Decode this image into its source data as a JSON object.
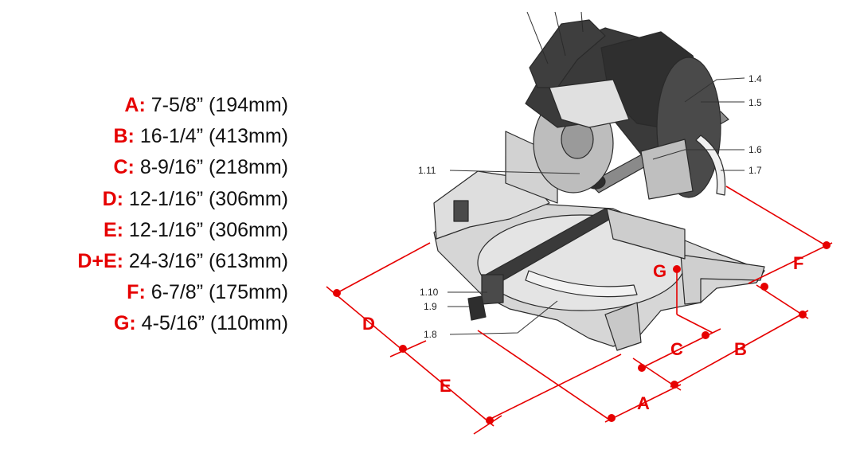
{
  "specs": [
    {
      "key": "A:",
      "value": " 7-5/8” (194mm)"
    },
    {
      "key": "B:",
      "value": " 16-1/4” (413mm)"
    },
    {
      "key": "C:",
      "value": " 8-9/16” (218mm)"
    },
    {
      "key": "D:",
      "value": " 12-1/16” (306mm)"
    },
    {
      "key": "E:",
      "value": " 12-1/16” (306mm)"
    },
    {
      "key": "D+E:",
      "value": " 24-3/16” (613mm)"
    },
    {
      "key": "F:",
      "value": " 6-7/8” (175mm)"
    },
    {
      "key": "G:",
      "value": " 4-5/16” (110mm)"
    }
  ],
  "diagram": {
    "dimension_letters": {
      "A": "A",
      "B": "B",
      "C": "C",
      "D": "D",
      "E": "E",
      "F": "F",
      "G": "G"
    },
    "part_labels": {
      "p1_4": "1.4",
      "p1_5": "1.5",
      "p1_6": "1.6",
      "p1_7": "1.7",
      "p1_8": "1.8",
      "p1_9": "1.9",
      "p1_10": "1.10",
      "p1_11": "1.11"
    },
    "colors": {
      "dimension": "#e60000",
      "outline": "#2a2a2a",
      "body": "#d9d9d9",
      "dark": "#3a3a3a"
    }
  }
}
